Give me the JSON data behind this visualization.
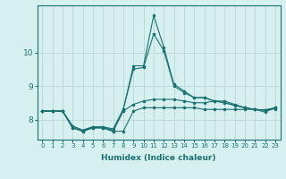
{
  "xlabel": "Humidex (Indice chaleur)",
  "background_color": "#d6f0f0",
  "grid_color": "#c0d8d8",
  "line_color": "#1a7070",
  "x_values": [
    0,
    1,
    2,
    3,
    4,
    5,
    6,
    7,
    8,
    9,
    10,
    11,
    12,
    13,
    14,
    15,
    16,
    17,
    18,
    19,
    20,
    21,
    22,
    23
  ],
  "series": [
    [
      8.25,
      8.25,
      8.25,
      7.75,
      7.65,
      7.75,
      7.75,
      7.65,
      7.65,
      8.25,
      8.35,
      8.35,
      8.35,
      8.35,
      8.35,
      8.35,
      8.3,
      8.3,
      8.3,
      8.3,
      8.3,
      8.3,
      8.28,
      8.32
    ],
    [
      8.25,
      8.25,
      8.25,
      7.75,
      7.65,
      7.75,
      7.75,
      7.65,
      8.25,
      8.45,
      8.55,
      8.6,
      8.6,
      8.6,
      8.55,
      8.5,
      8.5,
      8.55,
      8.55,
      8.45,
      8.35,
      8.3,
      8.28,
      8.35
    ],
    [
      8.25,
      8.25,
      8.25,
      7.8,
      7.68,
      7.78,
      7.78,
      7.72,
      8.3,
      9.5,
      9.55,
      10.55,
      10.05,
      9.0,
      8.8,
      8.65,
      8.65,
      8.55,
      8.5,
      8.42,
      8.35,
      8.3,
      8.28,
      8.35
    ],
    [
      8.25,
      8.25,
      8.25,
      7.8,
      7.68,
      7.78,
      7.78,
      7.68,
      8.3,
      9.6,
      9.6,
      11.1,
      10.15,
      9.05,
      8.85,
      8.65,
      8.65,
      8.55,
      8.5,
      8.42,
      8.35,
      8.3,
      8.22,
      8.35
    ]
  ],
  "ylim": [
    7.4,
    11.4
  ],
  "yticks": [
    8,
    9,
    10
  ],
  "xticks": [
    0,
    1,
    2,
    3,
    4,
    5,
    6,
    7,
    8,
    9,
    10,
    11,
    12,
    13,
    14,
    15,
    16,
    17,
    18,
    19,
    20,
    21,
    22,
    23
  ]
}
